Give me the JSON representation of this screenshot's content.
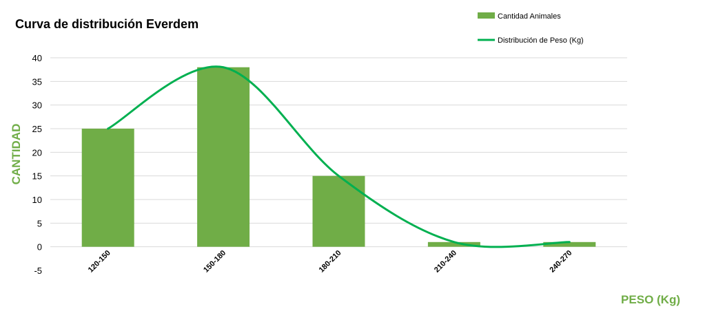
{
  "chart_data": {
    "type": "bar",
    "title": "Curva de distribución Everdem",
    "xlabel": "PESO (Kg)",
    "ylabel": "CANTIDAD",
    "categories": [
      "120-150",
      "150-180",
      "180-210",
      "210-240",
      "240-270"
    ],
    "series": [
      {
        "name": "Cantidad Animales",
        "type": "bar",
        "values": [
          25,
          38,
          15,
          1,
          1
        ]
      },
      {
        "name": "Distribución de Peso (Kg)",
        "type": "line",
        "smooth": true,
        "values": [
          25,
          38,
          15,
          1,
          1
        ]
      }
    ],
    "ylim": [
      -5,
      40
    ],
    "yticks": [
      -5,
      0,
      5,
      10,
      15,
      20,
      25,
      30,
      35,
      40
    ],
    "grid": true,
    "legend_position": "top-right",
    "colors": {
      "bar": "#70ad47",
      "line": "#00b050",
      "axis_title": "#70ad47"
    }
  }
}
